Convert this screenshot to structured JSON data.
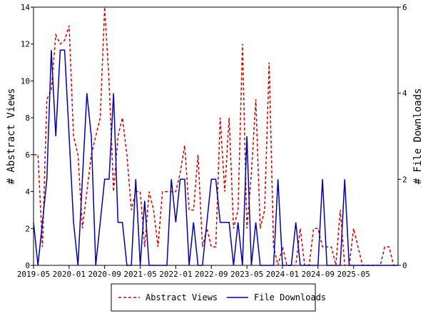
{
  "chart_data": {
    "type": "line",
    "ylabel_left": "# Abstract Views",
    "ylabel_right": "# File Downloads",
    "x_start": "2019-05",
    "x_ticks": [
      "2019-05",
      "2020-01",
      "2020-09",
      "2021-05",
      "2022-01",
      "2022-09",
      "2023-05",
      "2024-01",
      "2024-09",
      "2025-05"
    ],
    "y_left_ticks": [
      0,
      2,
      4,
      6,
      8,
      10,
      12,
      14
    ],
    "y_right_ticks": [
      0,
      2,
      4,
      6
    ],
    "ylim_left": [
      0,
      14
    ],
    "ylim_right": [
      0,
      6
    ],
    "legend_position": "bottom",
    "grid": false,
    "series": [
      {
        "name": "Abstract Views",
        "axis": "left",
        "color": "#cc0000",
        "style": "dashed",
        "values": [
          6,
          6,
          1,
          9,
          9.5,
          12.5,
          12,
          12.2,
          13,
          7,
          6,
          2,
          4,
          6,
          7,
          8,
          14,
          10,
          4,
          7,
          8,
          6,
          3,
          4,
          4,
          1,
          4,
          3,
          1,
          4,
          4,
          4,
          4,
          5,
          6.5,
          3,
          3,
          6,
          1,
          2,
          1,
          1,
          8,
          4,
          8,
          2,
          3,
          12,
          2,
          5,
          9,
          2,
          3,
          11,
          1,
          0,
          1,
          0,
          0,
          0,
          2,
          0,
          0,
          2,
          2,
          1,
          1,
          1,
          0,
          3,
          0,
          0,
          2,
          1,
          0,
          0,
          0,
          0,
          0,
          1,
          1,
          0,
          0
        ]
      },
      {
        "name": "File Downloads",
        "axis": "right",
        "color": "#0000aa",
        "style": "solid",
        "values": [
          1,
          0,
          1,
          2,
          5,
          3,
          5,
          5,
          3,
          1,
          0,
          2,
          4,
          3,
          0,
          1,
          2,
          2,
          4,
          1,
          1,
          0,
          0,
          2,
          0,
          1.5,
          0,
          0,
          0,
          0,
          0,
          2,
          1,
          2,
          2,
          0,
          1,
          0,
          0,
          1,
          2,
          2,
          1,
          1,
          1,
          0,
          1,
          0,
          3,
          0,
          1,
          0,
          0,
          0,
          0,
          2,
          0,
          0,
          0,
          1,
          0,
          0,
          0,
          0,
          0,
          2,
          0,
          0,
          0,
          0,
          2,
          0,
          0,
          0,
          0,
          0,
          0,
          0,
          0,
          0,
          0,
          0,
          0
        ]
      }
    ]
  }
}
